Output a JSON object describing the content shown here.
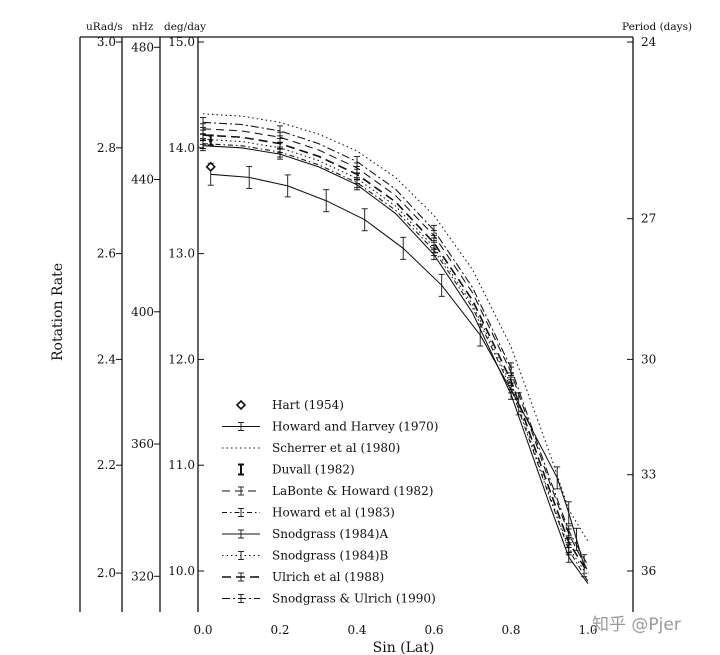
{
  "chart_data": {
    "type": "line",
    "xlabel": "Sin (Lat)",
    "ylabel": "Rotation Rate",
    "xlim": [
      0.0,
      1.0
    ],
    "ylim": [
      9.75,
      15.0
    ],
    "x_ticks": [
      "0.0",
      "0.2",
      "0.4",
      "0.6",
      "0.8",
      "1.0"
    ],
    "grid": false,
    "legend_position": "bottom-left",
    "axes": {
      "urad": {
        "unit": "uRad/s",
        "ticks": [
          {
            "label": "3.0",
            "value": 15.0
          },
          {
            "label": "2.8",
            "value": 14.0
          },
          {
            "label": "2.6",
            "value": 13.0
          },
          {
            "label": "2.4",
            "value": 12.0
          },
          {
            "label": "2.2",
            "value": 11.0
          },
          {
            "label": "2.0",
            "value": 9.98
          }
        ]
      },
      "nhz": {
        "unit": "nHz",
        "ticks": [
          {
            "label": "480",
            "value": 14.95
          },
          {
            "label": "440",
            "value": 13.7
          },
          {
            "label": "400",
            "value": 12.45
          },
          {
            "label": "360",
            "value": 11.2
          },
          {
            "label": "320",
            "value": 9.95
          }
        ]
      },
      "deg": {
        "unit": "deg/day",
        "ticks": [
          {
            "label": "15.0",
            "value": 15.0
          },
          {
            "label": "14.0",
            "value": 14.0
          },
          {
            "label": "13.0",
            "value": 13.0
          },
          {
            "label": "12.0",
            "value": 12.0
          },
          {
            "label": "11.0",
            "value": 11.0
          },
          {
            "label": "10.0",
            "value": 10.0
          }
        ]
      },
      "period": {
        "unit": "Period (days)",
        "ticks": [
          {
            "label": "24",
            "value": 15.0
          },
          {
            "label": "27",
            "value": 13.33
          },
          {
            "label": "30",
            "value": 12.0
          },
          {
            "label": "33",
            "value": 10.91
          },
          {
            "label": "36",
            "value": 10.0
          }
        ]
      }
    },
    "x": [
      0.0,
      0.1,
      0.2,
      0.3,
      0.4,
      0.5,
      0.6,
      0.7,
      0.8,
      0.9,
      0.95,
      1.0
    ],
    "series": [
      {
        "name": "Hart (1954)",
        "style": "diamond",
        "points": [
          [
            0.02,
            13.82
          ]
        ]
      },
      {
        "name": "Howard and Harvey (1970)",
        "style": "solid",
        "errorbars": true,
        "x": [
          0.02,
          0.12,
          0.22,
          0.32,
          0.42,
          0.52,
          0.62,
          0.72,
          0.82,
          0.92,
          0.95,
          0.97,
          0.99
        ],
        "values": [
          13.75,
          13.72,
          13.64,
          13.5,
          13.32,
          13.05,
          12.7,
          12.23,
          11.58,
          10.88,
          10.55,
          10.3,
          10.05
        ]
      },
      {
        "name": "Scherrer et al (1980)",
        "style": "dotted",
        "values": [
          14.32,
          14.3,
          14.24,
          14.13,
          13.97,
          13.72,
          13.36,
          12.85,
          12.12,
          11.12,
          10.58,
          10.28
        ]
      },
      {
        "name": "Duvall (1982)",
        "style": "bold-errorbar",
        "points": [
          [
            0.02,
            14.07
          ]
        ]
      },
      {
        "name": "LaBonte & Howard (1982)",
        "style": "dashed",
        "errorbars": true,
        "values": [
          14.18,
          14.16,
          14.1,
          13.98,
          13.81,
          13.55,
          13.17,
          12.63,
          11.88,
          10.84,
          10.35,
          10.0
        ]
      },
      {
        "name": "Howard et al (1983)",
        "style": "dash-dot-small",
        "errorbars": true,
        "values": [
          14.04,
          14.02,
          13.96,
          13.84,
          13.67,
          13.41,
          13.03,
          12.49,
          11.73,
          10.7,
          10.2,
          9.9
        ]
      },
      {
        "name": "Snodgrass (1984)A",
        "style": "solid",
        "errorbars": true,
        "values": [
          14.02,
          14.0,
          13.94,
          13.82,
          13.65,
          13.38,
          12.99,
          12.44,
          11.67,
          10.63,
          10.13,
          9.88
        ]
      },
      {
        "name": "Snodgrass (1984)B",
        "style": "dotted",
        "errorbars": true,
        "values": [
          14.08,
          14.06,
          14.0,
          13.88,
          13.71,
          13.45,
          13.06,
          12.52,
          11.76,
          10.72,
          10.22,
          9.95
        ]
      },
      {
        "name": "Ulrich et al (1988)",
        "style": "dashed-bold",
        "errorbars": true,
        "values": [
          14.12,
          14.1,
          14.04,
          13.92,
          13.75,
          13.49,
          13.1,
          12.56,
          11.8,
          10.77,
          10.27,
          9.98
        ]
      },
      {
        "name": "Snodgrass & Ulrich (1990)",
        "style": "dash-dot",
        "errorbars": true,
        "values": [
          14.24,
          14.22,
          14.16,
          14.04,
          13.87,
          13.61,
          13.22,
          12.68,
          11.92,
          10.88,
          10.38,
          10.05
        ]
      }
    ]
  },
  "watermark": "知乎 @Pjer"
}
